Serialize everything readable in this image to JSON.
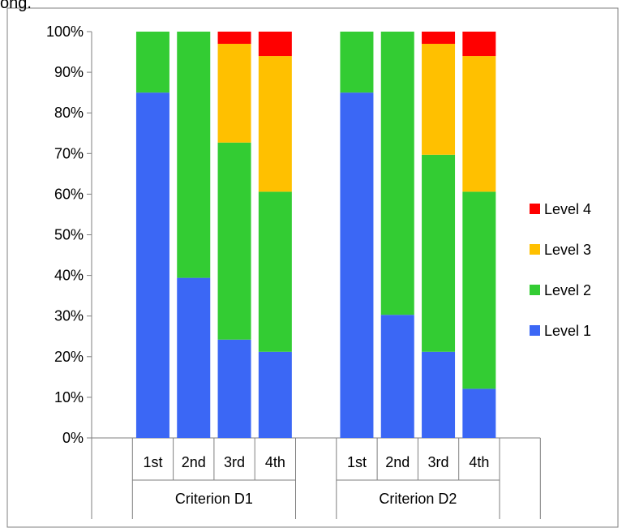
{
  "chart_data": {
    "type": "bar",
    "stacked": true,
    "percent": true,
    "groups": [
      {
        "label": "Criterion D1",
        "categories": [
          "1st",
          "2nd",
          "3rd",
          "4th"
        ]
      },
      {
        "label": "Criterion D2",
        "categories": [
          "1st",
          "2nd",
          "3rd",
          "4th"
        ]
      }
    ],
    "series": [
      {
        "name": "Level 1",
        "color": "#3b67f5",
        "values": [
          85,
          39.4,
          24.2,
          21.2,
          85,
          30.3,
          21.2,
          12.1
        ]
      },
      {
        "name": "Level 2",
        "color": "#33cc33",
        "values": [
          15,
          60.6,
          48.5,
          39.4,
          15,
          69.7,
          48.5,
          48.5
        ]
      },
      {
        "name": "Level 3",
        "color": "#ffc000",
        "values": [
          0,
          0,
          24.3,
          33.4,
          0,
          0,
          27.3,
          33.4
        ]
      },
      {
        "name": "Level 4",
        "color": "#ff0000",
        "values": [
          0,
          0,
          3,
          6,
          0,
          0,
          3,
          6
        ]
      }
    ],
    "y_ticks": [
      "0%",
      "10%",
      "20%",
      "30%",
      "40%",
      "50%",
      "60%",
      "70%",
      "80%",
      "90%",
      "100%"
    ],
    "ylim": [
      0,
      100
    ],
    "legend_position": "right",
    "legend_order": [
      "Level 4",
      "Level 3",
      "Level 2",
      "Level 1"
    ],
    "grid": false,
    "top_partial_text": "ong."
  }
}
